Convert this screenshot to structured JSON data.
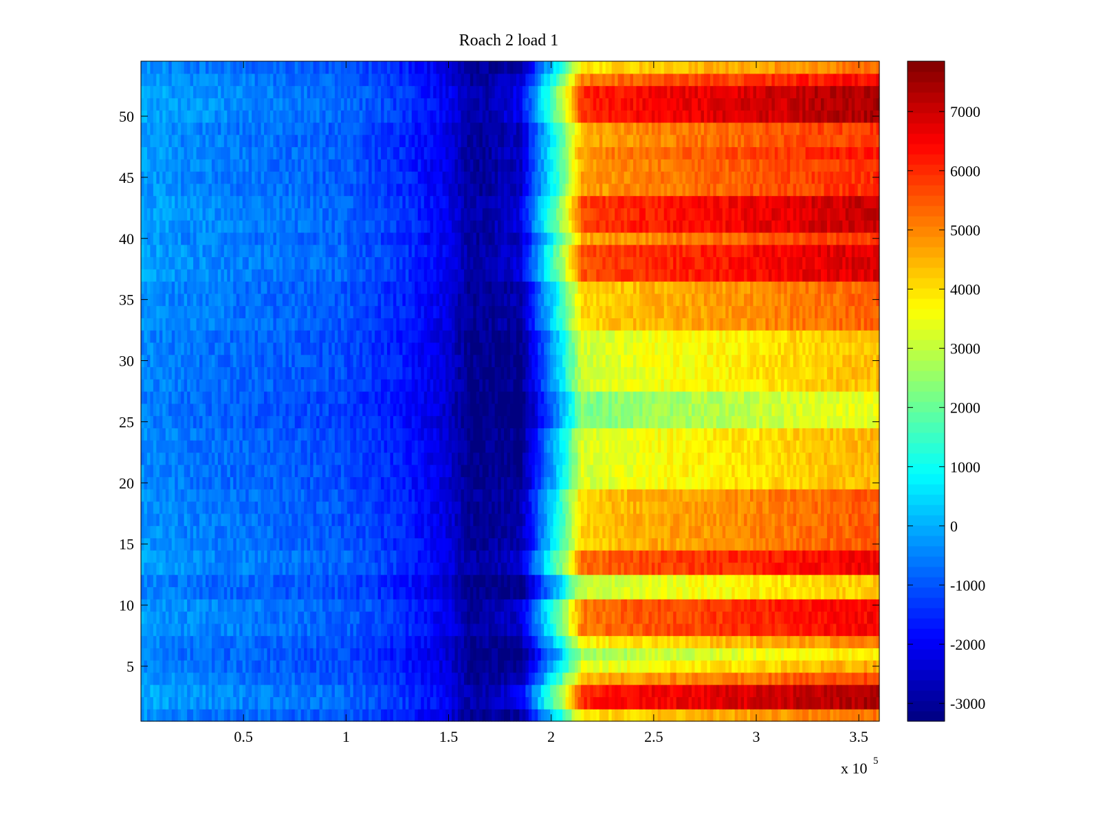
{
  "chart_data": {
    "type": "heatmap",
    "title": "Roach 2 load 1",
    "xlabel": "",
    "ylabel": "",
    "x_exponent_label": "x 10",
    "x_exponent_power": "5",
    "xlim": [
      0,
      360000
    ],
    "ylim": [
      0.5,
      54.5
    ],
    "xticks": [
      50000,
      100000,
      150000,
      200000,
      250000,
      300000,
      350000
    ],
    "xtick_labels": [
      "0.5",
      "1",
      "1.5",
      "2",
      "2.5",
      "3",
      "3.5"
    ],
    "yticks": [
      5,
      10,
      15,
      20,
      25,
      30,
      35,
      40,
      45,
      50
    ],
    "ytick_labels": [
      "5",
      "10",
      "15",
      "20",
      "25",
      "30",
      "35",
      "40",
      "45",
      "50"
    ],
    "rows": 54,
    "colormap": "jet",
    "clim": [
      -3300,
      7850
    ],
    "colorbar": {
      "ticks": [
        7000,
        6000,
        5000,
        4000,
        3000,
        2000,
        1000,
        0,
        -1000,
        -2000,
        -3000
      ],
      "tick_labels": [
        "7000",
        "6000",
        "5000",
        "4000",
        "3000",
        "2000",
        "1000",
        "0",
        "-1000",
        "-2000",
        "-3000"
      ],
      "placement": "right"
    },
    "grid": false,
    "profile_x": [
      0,
      20000,
      50000,
      100000,
      130000,
      150000,
      160000,
      185000,
      195000,
      205000,
      215000,
      250000,
      300000,
      330000,
      360000
    ],
    "profile_values": [
      -300,
      -500,
      -700,
      -1000,
      -1600,
      -2300,
      -3100,
      -2900,
      -800,
      1200,
      3900,
      4300,
      4700,
      5000,
      5200
    ],
    "row_offsets": [
      {
        "rows": [
          2,
          3
        ],
        "offset": 2200
      },
      {
        "rows": [
          4
        ],
        "offset": 600
      },
      {
        "rows": [
          5
        ],
        "offset": -600
      },
      {
        "rows": [
          6
        ],
        "offset": -1300
      },
      {
        "rows": [
          7
        ],
        "offset": -200
      },
      {
        "rows": [
          8,
          9,
          10
        ],
        "offset": 1300
      },
      {
        "rows": [
          11,
          12
        ],
        "offset": -900
      },
      {
        "rows": [
          13,
          14
        ],
        "offset": 1400
      },
      {
        "rows": [
          15,
          16,
          17,
          18,
          19
        ],
        "offset": 300
      },
      {
        "rows": [
          20,
          21,
          22,
          23,
          24
        ],
        "offset": -700
      },
      {
        "rows": [
          25,
          26,
          27
        ],
        "offset": -1700
      },
      {
        "rows": [
          28,
          29,
          30,
          31,
          32
        ],
        "offset": -800
      },
      {
        "rows": [
          33,
          34,
          35,
          36
        ],
        "offset": 200
      },
      {
        "rows": [
          37,
          38,
          39
        ],
        "offset": 1700
      },
      {
        "rows": [
          40
        ],
        "offset": 700
      },
      {
        "rows": [
          41,
          42,
          43
        ],
        "offset": 1900
      },
      {
        "rows": [
          44,
          45,
          46
        ],
        "offset": 800
      },
      {
        "rows": [
          47
        ],
        "offset": 1000
      },
      {
        "rows": [
          48,
          49
        ],
        "offset": 700
      },
      {
        "rows": [
          50,
          51,
          52
        ],
        "offset": 2200
      },
      {
        "rows": [
          53
        ],
        "offset": 1200
      },
      {
        "rows": [
          54
        ],
        "offset": 0
      }
    ]
  }
}
